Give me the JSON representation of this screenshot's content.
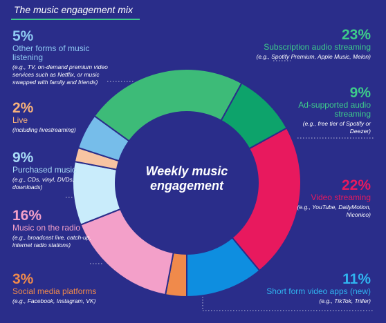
{
  "title": "The music engagement mix",
  "chart_data": {
    "type": "pie",
    "center_label": [
      "Weekly music",
      "engagement"
    ],
    "slices": [
      {
        "label": "Subscription audio streaming",
        "value": 23,
        "pct": "23%",
        "example": "(e.g., Spotify Premium, Apple Music, Melon)",
        "color": "#3dbb78"
      },
      {
        "label": "Ad-supported audio streaming",
        "value": 9,
        "pct": "9%",
        "example": "(e.g., free tier of Spotify or Deezer)",
        "color": "#0da36b"
      },
      {
        "label": "Video streaming",
        "value": 22,
        "pct": "22%",
        "example": "(e.g., YouTube, DailyMotion, Niconico)",
        "color": "#e8195e"
      },
      {
        "label": "Short form video apps (new)",
        "value": 11,
        "pct": "11%",
        "example": "(e.g., TikTok, Triller)",
        "color": "#0e8ee0"
      },
      {
        "label": "Social media platforms",
        "value": 3,
        "pct": "3%",
        "example": "(e.g., Facebook, Instagram, VK)",
        "color": "#f08a4b"
      },
      {
        "label": "Music on the radio",
        "value": 16,
        "pct": "16%",
        "example": "(e.g., broadcast live, catch-up, internet radio stations)",
        "color": "#f3a0c9"
      },
      {
        "label": "Purchased music",
        "value": 9,
        "pct": "9%",
        "example": "(e.g., CDs, vinyl, DVDs, downloads)",
        "color": "#c9ecfb"
      },
      {
        "label": "Live",
        "value": 2,
        "pct": "2%",
        "example": "(including livestreaming)",
        "color": "#f8c4a2"
      },
      {
        "label": "Other forms of music listening",
        "value": 5,
        "pct": "5%",
        "example": "(e.g., TV, on-demand premium video services such as Netflix, or music swapped with family and friends)",
        "color": "#76bdea"
      }
    ],
    "label_colors": [
      "#3dcc8a",
      "#3dcc8a",
      "#e8195e",
      "#30b4f0",
      "#f08a4b",
      "#f3a0c9",
      "#a9dcf6",
      "#f8b27a",
      "#8ec9f2"
    ]
  }
}
